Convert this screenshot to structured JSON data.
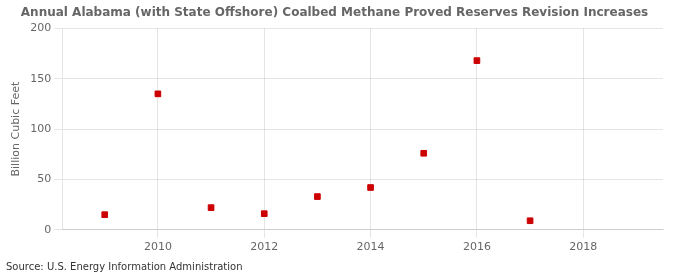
{
  "chart_data": {
    "type": "scatter",
    "title": "Annual Alabama (with State Offshore) Coalbed Methane Proved Reserves Revision Increases",
    "ylabel": "Billion Cubic Feet",
    "annotation": "Source: U.S. Energy Information Administration",
    "x": [
      2009,
      2010,
      2011,
      2012,
      2013,
      2014,
      2015,
      2016,
      2017
    ],
    "values": [
      15,
      135,
      22,
      16,
      33,
      42,
      76,
      168,
      9
    ],
    "color": "#cc0000",
    "marker": "square",
    "xlim": [
      2008.2,
      2019.5
    ],
    "ylim": [
      0,
      200
    ],
    "xticks": [
      2010,
      2012,
      2014,
      2016,
      2018
    ],
    "yticks": [
      0,
      50,
      100,
      150,
      200
    ],
    "grid": true
  }
}
